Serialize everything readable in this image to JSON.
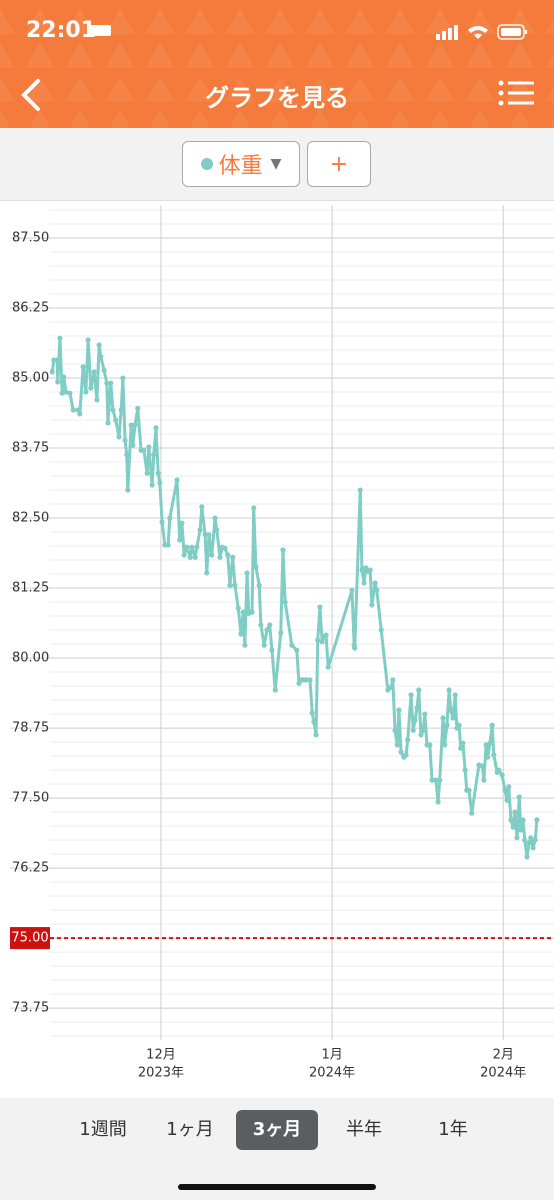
{
  "status_bar": {
    "time": "22:01"
  },
  "header": {
    "title": "グラフを見る"
  },
  "selector": {
    "add": "+"
  },
  "chart_data": {
    "type": "line",
    "x": [
      -19.7,
      -19.4,
      -18.8,
      -18.7,
      -18.3,
      -17.9,
      -17.6,
      -17.2,
      -16.5,
      -15.9,
      -15.0,
      -14.7,
      -14.1,
      -13.6,
      -13.2,
      -12.7,
      -12.1,
      -11.6,
      -11.2,
      -10.9,
      -10.3,
      -9.8,
      -9.6,
      -9.1,
      -8.7,
      -8.2,
      -7.6,
      -7.2,
      -6.9,
      -6.5,
      -6.2,
      -6.0,
      -5.4,
      -5.1,
      -4.7,
      -4.2,
      -3.6,
      -3.1,
      -2.5,
      -2.2,
      -1.6,
      -1.3,
      -0.9,
      -0.5,
      -0.2,
      0.2,
      0.7,
      1.3,
      1.6,
      2.9,
      3.4,
      3.8,
      4.2,
      4.7,
      5.3,
      5.6,
      6.2,
      6.5,
      7.1,
      7.4,
      8.0,
      8.3,
      8.7,
      9.2,
      9.8,
      10.1,
      10.7,
      11.1,
      11.6,
      12.1,
      12.5,
      13.0,
      13.4,
      14.0,
      14.5,
      14.9,
      15.2,
      15.6,
      15.9,
      16.5,
      16.8,
      17.2,
      17.8,
      18.1,
      18.7,
      19.2,
      19.7,
      20.1,
      20.7,
      21.7,
      22.1,
      22.5,
      23.7,
      24.6,
      25.0,
      25.5,
      25.9,
      26.3,
      27.0,
      27.4,
      27.7,
      28.1,
      28.4,
      28.8,
      29.2,
      29.5,
      29.9,
      30.3,
      34.6,
      35.0,
      35.1,
      36.1,
      36.4,
      36.8,
      37.1,
      37.5,
      37.9,
      38.2,
      38.8,
      39.1,
      39.9,
      41.1,
      41.7,
      42.0,
      42.4,
      42.8,
      43.1,
      43.5,
      44.0,
      44.4,
      44.7,
      45.3,
      45.7,
      46.0,
      46.4,
      46.7,
      47.1,
      47.5,
      47.8,
      48.2,
      48.7,
      49.1,
      49.8,
      50.2,
      50.5,
      51.1,
      51.4,
      51.8,
      52.2,
      52.5,
      52.9,
      53.3,
      53.6,
      54.0,
      54.3,
      54.7,
      55.1,
      55.4,
      55.8,
      56.3,
      57.6,
      58.2,
      58.5,
      58.9,
      59.2,
      59.6,
      60.0,
      60.3,
      60.9,
      61.2,
      61.8,
      62.3,
      62.7,
      63.0,
      63.4,
      63.8,
      64.1,
      64.5,
      64.9,
      65.2,
      65.6,
      65.9,
      66.3,
      66.7,
      67.0,
      67.4,
      67.8,
      68.1
    ],
    "series": [
      {
        "name": "体重",
        "color": "#7fcdc4",
        "values": [
          85.11,
          85.32,
          85.32,
          84.93,
          85.71,
          84.73,
          85.02,
          84.75,
          84.73,
          84.43,
          84.43,
          84.36,
          85.2,
          84.75,
          85.68,
          84.82,
          85.11,
          84.61,
          85.59,
          85.38,
          85.14,
          84.91,
          84.2,
          84.91,
          84.43,
          84.25,
          83.95,
          84.43,
          85.0,
          83.89,
          83.63,
          83.0,
          84.16,
          83.8,
          84.16,
          84.46,
          83.71,
          83.71,
          83.3,
          83.77,
          83.09,
          83.63,
          84.11,
          83.3,
          83.13,
          82.43,
          82.02,
          82.02,
          82.5,
          83.18,
          82.11,
          82.41,
          81.84,
          81.98,
          81.8,
          81.98,
          81.8,
          81.98,
          82.29,
          82.7,
          82.21,
          81.52,
          82.2,
          81.84,
          82.5,
          82.29,
          81.8,
          81.98,
          81.96,
          81.84,
          81.3,
          81.8,
          81.3,
          80.89,
          80.43,
          80.82,
          80.23,
          81.52,
          80.8,
          80.82,
          82.68,
          81.63,
          81.3,
          80.59,
          80.23,
          80.5,
          80.59,
          80.14,
          79.43,
          80.45,
          81.93,
          81.0,
          80.23,
          80.14,
          79.55,
          79.61,
          79.61,
          79.61,
          79.61,
          79.02,
          78.86,
          78.63,
          80.32,
          80.91,
          80.29,
          80.38,
          80.41,
          79.84,
          81.21,
          80.23,
          80.18,
          83.0,
          81.57,
          81.34,
          81.61,
          81.55,
          81.57,
          80.95,
          81.34,
          81.21,
          80.5,
          79.43,
          79.48,
          79.61,
          78.71,
          78.45,
          79.07,
          78.32,
          78.23,
          78.27,
          78.54,
          79.34,
          78.71,
          78.89,
          79.11,
          79.43,
          78.63,
          78.71,
          79.0,
          78.45,
          78.45,
          77.82,
          77.82,
          77.43,
          77.82,
          78.93,
          78.45,
          78.8,
          79.43,
          79.07,
          78.93,
          79.34,
          78.75,
          78.8,
          78.39,
          78.48,
          78.0,
          77.64,
          77.64,
          77.23,
          78.09,
          78.07,
          77.82,
          78.45,
          78.23,
          78.48,
          78.8,
          78.27,
          77.96,
          78.0,
          77.91,
          77.64,
          77.46,
          77.7,
          77.11,
          76.98,
          77.25,
          76.79,
          77.52,
          76.93,
          77.11,
          76.75,
          76.45,
          76.7,
          76.79,
          76.61,
          76.75,
          77.11
        ]
      }
    ],
    "xlim": [
      -20.1,
      71.2
    ],
    "xticks": [
      {
        "value": 0,
        "label": "12月",
        "year": "2023年"
      },
      {
        "value": 31,
        "label": "1月",
        "year": "2024年"
      },
      {
        "value": 62,
        "label": "2月",
        "year": "2024年"
      }
    ],
    "ylim": [
      73.18,
      88.09
    ],
    "yticks": [
      {
        "value": 73.75,
        "label": "73.75"
      },
      {
        "value": 75,
        "label": "75.00"
      },
      {
        "value": 76.25,
        "label": "76.25"
      },
      {
        "value": 77.5,
        "label": "77.50"
      },
      {
        "value": 78.75,
        "label": "78.75"
      },
      {
        "value": 80,
        "label": "80.00"
      },
      {
        "value": 81.25,
        "label": "81.25"
      },
      {
        "value": 82.5,
        "label": "82.50"
      },
      {
        "value": 83.75,
        "label": "83.75"
      },
      {
        "value": 85,
        "label": "85.00"
      },
      {
        "value": 86.25,
        "label": "86.25"
      },
      {
        "value": 87.5,
        "label": "87.50"
      }
    ],
    "minor_grid_step": 0.25,
    "target": {
      "value": 75,
      "label": "75.00",
      "color": "#cc1111"
    }
  },
  "tabs": [
    "1週間",
    "1ヶ月",
    "3ヶ月",
    "半年",
    "1年"
  ],
  "selected_tab": 2
}
